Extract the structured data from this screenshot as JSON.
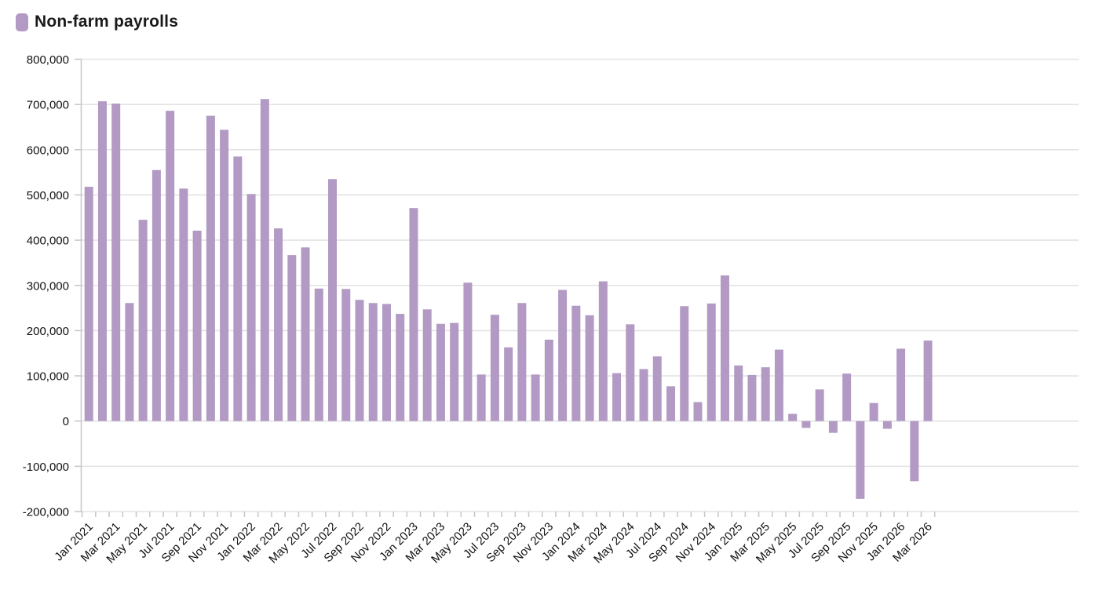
{
  "legend": {
    "label": "Non-farm payrolls"
  },
  "chart_data": {
    "type": "bar",
    "title": "",
    "series_name": "Non-farm payrolls",
    "categories": [
      "Jan 2021",
      "Feb 2021",
      "Mar 2021",
      "Apr 2021",
      "May 2021",
      "Jun 2021",
      "Jul 2021",
      "Aug 2021",
      "Sep 2021",
      "Oct 2021",
      "Nov 2021",
      "Dec 2021",
      "Jan 2022",
      "Feb 2022",
      "Mar 2022",
      "Apr 2022",
      "May 2022",
      "Jun 2022",
      "Jul 2022",
      "Aug 2022",
      "Sep 2022",
      "Oct 2022",
      "Nov 2022",
      "Dec 2022",
      "Jan 2023",
      "Feb 2023",
      "Mar 2023",
      "Apr 2023",
      "May 2023",
      "Jun 2023",
      "Jul 2023",
      "Aug 2023",
      "Sep 2023",
      "Oct 2023",
      "Nov 2023",
      "Dec 2023",
      "Jan 2024",
      "Feb 2024",
      "Mar 2024",
      "Apr 2024",
      "May 2024",
      "Jun 2024",
      "Jul 2024",
      "Aug 2024",
      "Sep 2024",
      "Oct 2024",
      "Nov 2024",
      "Dec 2024",
      "Jan 2025",
      "Feb 2025",
      "Mar 2025",
      "Apr 2025",
      "May 2025",
      "Jun 2025",
      "Jul 2025",
      "Aug 2025",
      "Sep 2025",
      "Oct 2025",
      "Nov 2025",
      "Dec 2025",
      "Jan 2026",
      "Feb 2026",
      "Mar 2026"
    ],
    "values": [
      518000,
      707000,
      702000,
      261000,
      445000,
      555000,
      686000,
      514000,
      421000,
      675000,
      644000,
      585000,
      502000,
      712000,
      426000,
      367000,
      384000,
      293000,
      535000,
      292000,
      268000,
      261000,
      259000,
      237000,
      471000,
      247000,
      215000,
      217000,
      306000,
      103000,
      235000,
      163000,
      261000,
      103000,
      180000,
      290000,
      255000,
      234000,
      309000,
      106000,
      214000,
      115000,
      143000,
      77000,
      254000,
      42000,
      260000,
      322000,
      123000,
      102000,
      119000,
      158000,
      16000,
      -15000,
      70000,
      -26000,
      105000,
      -172000,
      40000,
      -17000,
      160000,
      -133000,
      178000
    ],
    "x_tick_labels": [
      "Jan 2021",
      "Mar 2021",
      "May 2021",
      "Jul 2021",
      "Sep 2021",
      "Nov 2021",
      "Jan 2022",
      "Mar 2022",
      "May 2022",
      "Jul 2022",
      "Sep 2022",
      "Nov 2022",
      "Jan 2023",
      "Mar 2023",
      "May 2023",
      "Jul 2023",
      "Sep 2023",
      "Nov 2023",
      "Jan 2024",
      "Mar 2024",
      "May 2024",
      "Jul 2024",
      "Sep 2024",
      "Nov 2024",
      "Jan 2025",
      "Mar 2025",
      "May 2025",
      "Jul 2025",
      "Sep 2025",
      "Nov 2025",
      "Jan 2026",
      "Mar 2026"
    ],
    "x_tick_every": 2,
    "ylim": [
      -200000,
      800000
    ],
    "ytick_step": 100000,
    "ytick_labels": [
      "800,000",
      "700,000",
      "600,000",
      "500,000",
      "400,000",
      "300,000",
      "200,000",
      "100,000",
      "0",
      "-100,000",
      "-200,000"
    ],
    "grid": "horizontal",
    "legend_position": "top-left",
    "colors": {
      "bar": "#b29ac4",
      "grid": "#e3e3e3",
      "axis": "#c9c9c9",
      "text": "#111111",
      "background": "#ffffff"
    }
  }
}
